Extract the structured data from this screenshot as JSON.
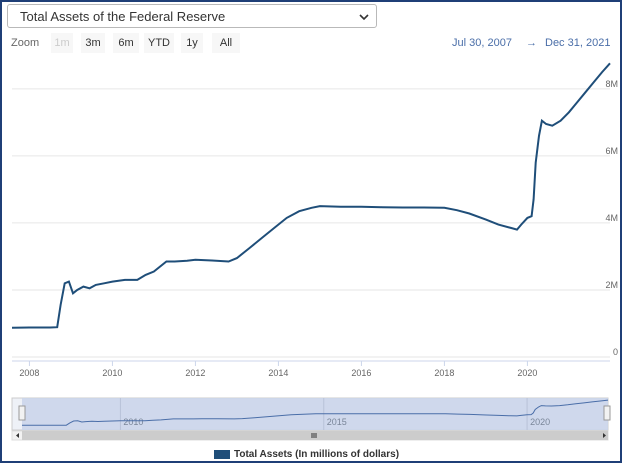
{
  "selector": {
    "label": "Total Assets of the Federal Reserve"
  },
  "zoom": {
    "label": "Zoom",
    "buttons": [
      {
        "label": "1m",
        "enabled": false
      },
      {
        "label": "3m",
        "enabled": true
      },
      {
        "label": "6m",
        "enabled": true
      },
      {
        "label": "YTD",
        "enabled": true
      },
      {
        "label": "1y",
        "enabled": true
      },
      {
        "label": "All",
        "enabled": true
      }
    ]
  },
  "range": {
    "from": "Jul 30, 2007",
    "sep": "→",
    "to": "Dec 31, 2021"
  },
  "colors": {
    "line": "#1f4e79",
    "accent": "#4a6ea8",
    "grid": "#e6e6e6",
    "navigator_fill": "#c9d3ea"
  },
  "chart_data": {
    "type": "line",
    "x_tick_labels": [
      "2008",
      "2010",
      "2012",
      "2014",
      "2016",
      "2018",
      "2020"
    ],
    "y_tick_labels": [
      "0",
      "2M",
      "4M",
      "6M",
      "8M"
    ],
    "xlim": [
      2007.58,
      2021.99
    ],
    "ylim": [
      0,
      8800000
    ],
    "grid": true,
    "series": [
      {
        "name": "Total Assets (In millions of dollars)",
        "x": [
          2007.58,
          2008.0,
          2008.5,
          2008.67,
          2008.75,
          2008.85,
          2008.95,
          2009.05,
          2009.15,
          2009.3,
          2009.45,
          2009.6,
          2009.8,
          2010.0,
          2010.3,
          2010.6,
          2010.8,
          2011.0,
          2011.3,
          2011.5,
          2011.8,
          2012.0,
          2012.4,
          2012.8,
          2013.0,
          2013.3,
          2013.6,
          2013.9,
          2014.2,
          2014.5,
          2014.8,
          2015.0,
          2015.5,
          2016.0,
          2016.5,
          2017.0,
          2017.5,
          2018.0,
          2018.3,
          2018.6,
          2019.0,
          2019.3,
          2019.6,
          2019.75,
          2019.85,
          2020.0,
          2020.1,
          2020.15,
          2020.2,
          2020.28,
          2020.35,
          2020.45,
          2020.6,
          2020.8,
          2021.0,
          2021.2,
          2021.4,
          2021.6,
          2021.8,
          2021.99
        ],
        "y": [
          870000,
          880000,
          880000,
          890000,
          1550000,
          2200000,
          2250000,
          1900000,
          2000000,
          2100000,
          2050000,
          2150000,
          2200000,
          2250000,
          2300000,
          2300000,
          2450000,
          2550000,
          2850000,
          2850000,
          2870000,
          2900000,
          2880000,
          2850000,
          2950000,
          3250000,
          3550000,
          3850000,
          4150000,
          4350000,
          4450000,
          4500000,
          4480000,
          4480000,
          4470000,
          4460000,
          4460000,
          4450000,
          4380000,
          4280000,
          4100000,
          3950000,
          3850000,
          3800000,
          3950000,
          4150000,
          4200000,
          4700000,
          5800000,
          6600000,
          7050000,
          6950000,
          6900000,
          7050000,
          7300000,
          7600000,
          7900000,
          8200000,
          8500000,
          8760000
        ]
      }
    ],
    "navigator_tick_labels": [
      "2010",
      "2015",
      "2020"
    ]
  },
  "legend": {
    "label": "Total Assets (In millions of dollars)"
  }
}
